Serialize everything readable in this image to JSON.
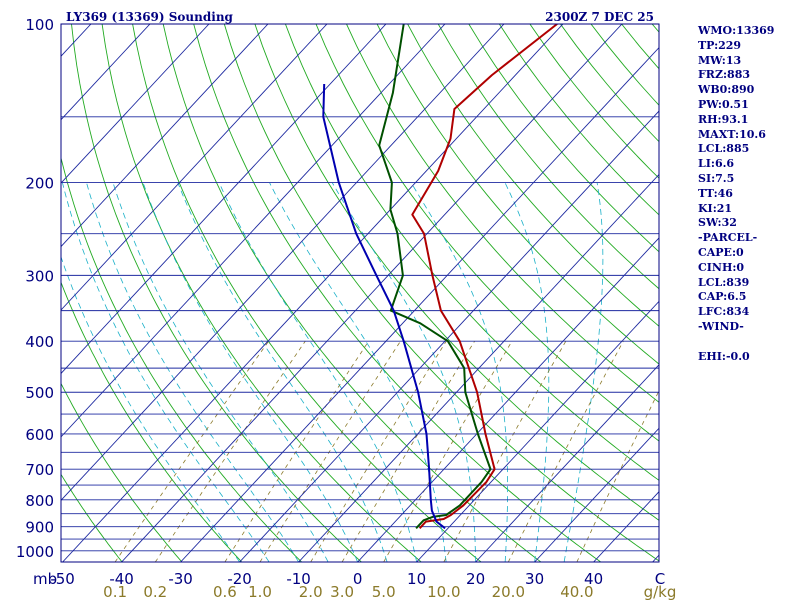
{
  "colors": {
    "frame": "#000080",
    "isobar": "#1e2aa0",
    "isotherm": "#1e2aa0",
    "dry_adiabat": "#22aa22",
    "moist_adiabat": "#1ab0c8",
    "mixing_ratio": "#8b7a2a",
    "temperature": "#b00000",
    "dewpoint": "#005000",
    "parcel": "#0000b0",
    "text": "#000080"
  },
  "chart_data": {
    "type": "line",
    "diagram": "skew-T log-p",
    "title": "LY369 (13369) Sounding",
    "time_label": "2300Z  7 DEC 25",
    "ylabel": "mb",
    "pressure_labels": [
      "100",
      "200",
      "300",
      "400",
      "500",
      "600",
      "700",
      "800",
      "900",
      "1000"
    ],
    "pressure_levels": [
      100,
      150,
      200,
      250,
      300,
      350,
      400,
      450,
      500,
      550,
      600,
      650,
      700,
      750,
      800,
      850,
      900,
      950,
      1000,
      1050
    ],
    "ylim": [
      1050,
      100
    ],
    "xlim": [
      -50,
      50
    ],
    "xlabel_unit": "C",
    "temperature_labels": [
      "-50",
      "-40",
      "-30",
      "-20",
      "-10",
      "0",
      "10",
      "20",
      "30",
      "40"
    ],
    "temperature_values": [
      -50,
      -40,
      -30,
      -20,
      -10,
      0,
      10,
      20,
      30,
      40
    ],
    "mixing_ratio_labels": [
      "0.1",
      "0.2",
      "0.6",
      "1.0",
      "2.0",
      "3.0",
      "5.0",
      "10.0",
      "20.0",
      "40.0"
    ],
    "mixing_ratio_values": [
      0.1,
      0.2,
      0.6,
      1.0,
      2.0,
      3.0,
      5.0,
      10.0,
      20.0,
      40.0
    ],
    "mixing_ratio_unit": "g/kg",
    "series": [
      {
        "name": "Temperature",
        "points": [
          [
            906,
            5.2
          ],
          [
            880,
            5.2
          ],
          [
            870,
            7.8
          ],
          [
            855,
            8.4
          ],
          [
            820,
            9.0
          ],
          [
            740,
            9.2
          ],
          [
            700,
            8.6
          ],
          [
            600,
            1.5
          ],
          [
            500,
            -6.5
          ],
          [
            400,
            -17.5
          ],
          [
            350,
            -25.5
          ],
          [
            300,
            -32.5
          ],
          [
            250,
            -40.5
          ],
          [
            230,
            -45.5
          ],
          [
            190,
            -48
          ],
          [
            165,
            -51
          ],
          [
            145,
            -55
          ],
          [
            125,
            -54
          ],
          [
            100,
            -51
          ]
        ]
      },
      {
        "name": "Dewpoint",
        "points": [
          [
            906,
            4.6
          ],
          [
            875,
            4.6
          ],
          [
            862,
            5.6
          ],
          [
            855,
            7.6
          ],
          [
            820,
            8.4
          ],
          [
            740,
            8.4
          ],
          [
            700,
            7.9
          ],
          [
            600,
            0.2
          ],
          [
            500,
            -8.5
          ],
          [
            450,
            -12.5
          ],
          [
            400,
            -19.5
          ],
          [
            370,
            -27
          ],
          [
            350,
            -34
          ],
          [
            300,
            -37.5
          ],
          [
            250,
            -45
          ],
          [
            225,
            -50
          ],
          [
            200,
            -54
          ],
          [
            170,
            -62
          ],
          [
            135,
            -68
          ],
          [
            100,
            -77
          ]
        ]
      },
      {
        "name": "Parcel",
        "points": [
          [
            906,
            9.5
          ],
          [
            880,
            7.0
          ],
          [
            839,
            4.5
          ],
          [
            800,
            2.6
          ],
          [
            700,
            -2.5
          ],
          [
            600,
            -8.5
          ],
          [
            500,
            -16.5
          ],
          [
            400,
            -27
          ],
          [
            350,
            -33.5
          ],
          [
            300,
            -42
          ],
          [
            250,
            -52
          ],
          [
            200,
            -63
          ],
          [
            150,
            -76
          ],
          [
            130,
            -81
          ]
        ]
      }
    ]
  },
  "indices": [
    "WMO:13369",
    "TP:229",
    "MW:13",
    "FRZ:883",
    "WB0:890",
    "PW:0.51",
    "RH:93.1",
    "MAXT:10.6",
    "LCL:885",
    "LI:6.6",
    "SI:7.5",
    "TT:46",
    "KI:21",
    "SW:32",
    "-PARCEL-",
    "CAPE:0",
    "CINH:0",
    "LCL:839",
    "CAP:6.5",
    "LFC:834",
    "-WIND-",
    "",
    "EHI:-0.0"
  ]
}
